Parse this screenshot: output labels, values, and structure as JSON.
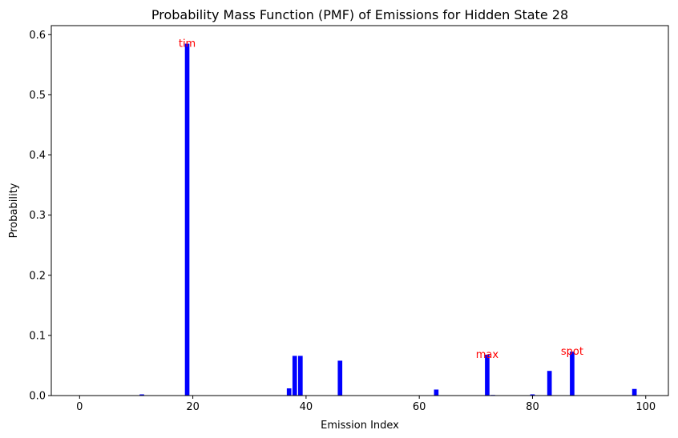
{
  "chart_data": {
    "type": "bar",
    "title": "Probability Mass Function (PMF) of Emissions for Hidden State 28",
    "xlabel": "Emission Index",
    "ylabel": "Probability",
    "xlim": [
      -5,
      104
    ],
    "ylim": [
      0,
      0.615
    ],
    "xticks": [
      0,
      20,
      40,
      60,
      80,
      100
    ],
    "xtick_labels": [
      "0",
      "20",
      "40",
      "60",
      "80",
      "100"
    ],
    "yticks": [
      0.0,
      0.1,
      0.2,
      0.3,
      0.4,
      0.5,
      0.6
    ],
    "ytick_labels": [
      "0.0",
      "0.1",
      "0.2",
      "0.3",
      "0.4",
      "0.5",
      "0.6"
    ],
    "bar_color": "#0000ff",
    "annotation_color": "#ff0000",
    "grid": false,
    "x": [
      11,
      19,
      37,
      38,
      39,
      46,
      63,
      72,
      73,
      80,
      83,
      87,
      98
    ],
    "values": [
      0.002,
      0.585,
      0.012,
      0.066,
      0.066,
      0.058,
      0.01,
      0.068,
      0.001,
      0.002,
      0.041,
      0.073,
      0.011
    ],
    "annotations": [
      {
        "text": "tim",
        "x": 19,
        "y": 0.585
      },
      {
        "text": "max",
        "x": 72,
        "y": 0.068
      },
      {
        "text": "spot",
        "x": 87,
        "y": 0.073
      }
    ]
  }
}
